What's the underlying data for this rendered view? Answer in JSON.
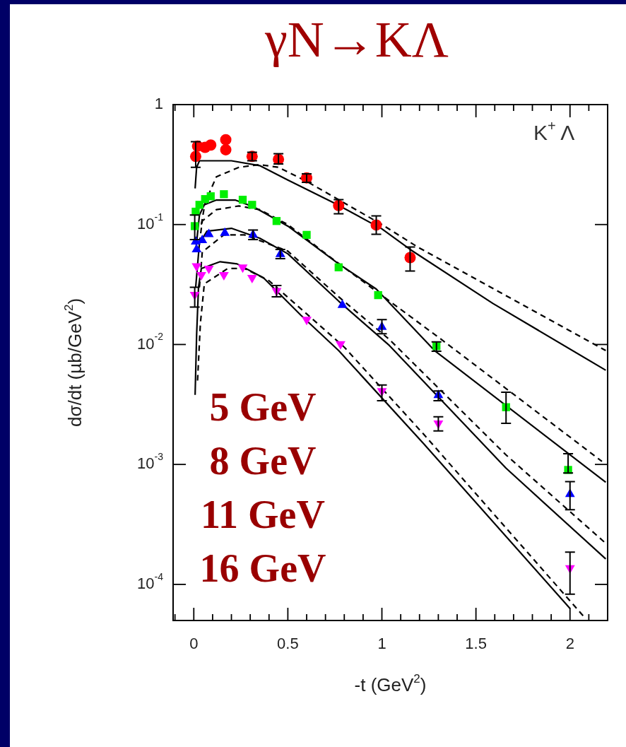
{
  "chart_data": {
    "type": "scatter",
    "title": "γN→KΛ",
    "xlabel": "-t (GeV$^{2}$)",
    "ylabel": "dσ/dt (µb/GeV$^{2}$)",
    "annotations": [
      "K$^{+}$ Λ",
      "5 GeV",
      "8 GeV",
      "11 GeV",
      "16 GeV"
    ],
    "log": "y",
    "grid": false,
    "legend": false,
    "xlim": [
      -0.11,
      2.2
    ],
    "xticks": [
      0,
      0.5,
      1,
      1.5,
      2
    ],
    "ylim": [
      5e-05,
      1
    ],
    "yticks": [
      1,
      {
        "value": 0.1,
        "label": "10$^{-1}$"
      },
      {
        "value": 0.01,
        "label": "10$^{-2}$"
      },
      {
        "value": 0.001,
        "label": "10$^{-3}$"
      },
      {
        "value": 0.0001,
        "label": "10$^{-4}$"
      }
    ],
    "series": [
      {
        "type": "line",
        "color": "#000000",
        "marker": "none",
        "line_style": "solid",
        "x": [
          0.007,
          0.015,
          0.03,
          0.06,
          0.2,
          0.35,
          0.5,
          0.75,
          1.0,
          1.15,
          1.59,
          2.19
        ],
        "values": [
          0.2,
          0.3,
          0.34,
          0.34,
          0.34,
          0.31,
          0.235,
          0.15,
          0.092,
          0.062,
          0.022,
          0.0061
        ]
      },
      {
        "type": "line",
        "color": "#000000",
        "marker": "none",
        "line_style": "dashed",
        "x": [
          0.04,
          0.06,
          0.12,
          0.24,
          0.35,
          0.45,
          0.6,
          1.0,
          1.19,
          2.19
        ],
        "values": [
          0.1,
          0.152,
          0.25,
          0.3,
          0.316,
          0.3,
          0.229,
          0.1,
          0.065,
          0.0089
        ]
      },
      {
        "type": "line",
        "color": "#000000",
        "marker": "none",
        "line_style": "solid",
        "x": [
          0.01,
          0.03,
          0.056,
          0.12,
          0.22,
          0.32,
          0.5,
          0.77,
          0.97,
          1.28,
          2.19
        ],
        "values": [
          0.06,
          0.12,
          0.146,
          0.16,
          0.16,
          0.14,
          0.097,
          0.047,
          0.029,
          0.0089,
          0.00071
        ]
      },
      {
        "type": "line",
        "color": "#000000",
        "marker": "none",
        "line_style": "dashed",
        "x": [
          0.03,
          0.045,
          0.12,
          0.24,
          0.35,
          0.5,
          0.75,
          1.31,
          2.17
        ],
        "values": [
          0.07,
          0.107,
          0.133,
          0.143,
          0.133,
          0.1,
          0.05,
          0.0112,
          0.00106
        ]
      },
      {
        "type": "line",
        "color": "#000000",
        "marker": "none",
        "line_style": "solid",
        "x": [
          0.01,
          0.03,
          0.07,
          0.2,
          0.35,
          0.5,
          0.77,
          1.04,
          1.66,
          2.19
        ],
        "values": [
          0.03,
          0.07,
          0.088,
          0.093,
          0.077,
          0.057,
          0.023,
          0.0098,
          0.00093,
          0.000163
        ]
      },
      {
        "type": "line",
        "color": "#000000",
        "marker": "none",
        "line_style": "dashed",
        "x": [
          0.03,
          0.045,
          0.16,
          0.27,
          0.5,
          0.77,
          1.04,
          1.66,
          2.19
        ],
        "values": [
          0.03,
          0.059,
          0.082,
          0.082,
          0.06,
          0.025,
          0.011,
          0.0012,
          0.00022
        ]
      },
      {
        "type": "line",
        "color": "#000000",
        "marker": "none",
        "line_style": "solid",
        "x": [
          0.007,
          0.015,
          0.025,
          0.04,
          0.14,
          0.23,
          0.37,
          0.57,
          0.77,
          1.22,
          2.0
        ],
        "values": [
          0.0038,
          0.012,
          0.03,
          0.043,
          0.049,
          0.047,
          0.036,
          0.0175,
          0.0089,
          0.0015,
          6.3e-05
        ]
      },
      {
        "type": "line",
        "color": "#000000",
        "marker": "none",
        "line_style": "dashed",
        "x": [
          0.02,
          0.035,
          0.056,
          0.18,
          0.27,
          0.4,
          0.6,
          0.8,
          1.22,
          2.08
        ],
        "values": [
          0.005,
          0.015,
          0.032,
          0.043,
          0.043,
          0.034,
          0.018,
          0.0095,
          0.0018,
          5.25e-05
        ]
      },
      {
        "type": "scatter",
        "color": "#ff0000",
        "marker": "circle",
        "x": [
          0.01,
          0.02,
          0.06,
          0.09,
          0.17,
          0.17,
          0.31,
          0.45,
          0.6,
          0.77,
          0.97,
          1.15
        ],
        "values": [
          0.37,
          0.45,
          0.44,
          0.46,
          0.51,
          0.42,
          0.37,
          0.35,
          0.245,
          0.144,
          0.099,
          0.053
        ],
        "errors": [
          [
            0.3,
            0.49
          ],
          null,
          null,
          null,
          null,
          null,
          [
            0.34,
            0.4
          ],
          [
            0.32,
            0.39
          ],
          [
            0.225,
            0.265
          ],
          [
            0.123,
            0.161
          ],
          [
            0.083,
            0.118
          ],
          [
            0.041,
            0.065
          ]
        ]
      },
      {
        "type": "scatter",
        "color": "#00ee00",
        "marker": "square",
        "x": [
          0.005,
          0.01,
          0.03,
          0.06,
          0.09,
          0.16,
          0.26,
          0.31,
          0.44,
          0.6,
          0.77,
          0.98,
          1.29,
          1.66,
          1.99
        ],
        "values": [
          0.097,
          0.128,
          0.146,
          0.163,
          0.172,
          0.179,
          0.161,
          0.146,
          0.107,
          0.082,
          0.044,
          0.0258,
          0.0097,
          0.003,
          0.0009
        ],
        "errors": [
          [
            0.075,
            0.12
          ],
          null,
          null,
          null,
          null,
          null,
          null,
          null,
          null,
          null,
          null,
          null,
          [
            0.0088,
            0.0105
          ],
          [
            0.0022,
            0.004
          ],
          [
            0.00085,
            0.00123
          ]
        ]
      },
      {
        "type": "scatter",
        "color": "#0000ff",
        "marker": "triangle",
        "x": [
          0.01,
          0.015,
          0.045,
          0.08,
          0.165,
          0.315,
          0.46,
          0.79,
          1.0,
          1.3,
          2.0
        ],
        "values": [
          0.072,
          0.062,
          0.074,
          0.083,
          0.085,
          0.082,
          0.0566,
          0.0213,
          0.014,
          0.00377,
          0.000566
        ],
        "errors": [
          null,
          null,
          null,
          null,
          null,
          [
            0.075,
            0.09
          ],
          [
            0.052,
            0.062
          ],
          null,
          [
            0.0123,
            0.0161
          ],
          [
            0.0034,
            0.0041
          ],
          [
            0.00042,
            0.00072
          ]
        ]
      },
      {
        "type": "scatter",
        "color": "#ff00ff",
        "marker": "triangle-down",
        "x": [
          0.005,
          0.015,
          0.04,
          0.08,
          0.16,
          0.26,
          0.31,
          0.44,
          0.6,
          0.78,
          1.0,
          1.3,
          2.0
        ],
        "values": [
          0.026,
          0.045,
          0.038,
          0.043,
          0.038,
          0.044,
          0.036,
          0.028,
          0.0161,
          0.0101,
          0.0041,
          0.0022,
          0.000137
        ],
        "errors": [
          [
            0.0205,
            0.03
          ],
          null,
          null,
          null,
          null,
          null,
          null,
          [
            0.025,
            0.031
          ],
          null,
          null,
          [
            0.0034,
            0.0046
          ],
          [
            0.0019,
            0.0025
          ],
          [
            8.3e-05,
            0.000186
          ]
        ]
      }
    ]
  }
}
